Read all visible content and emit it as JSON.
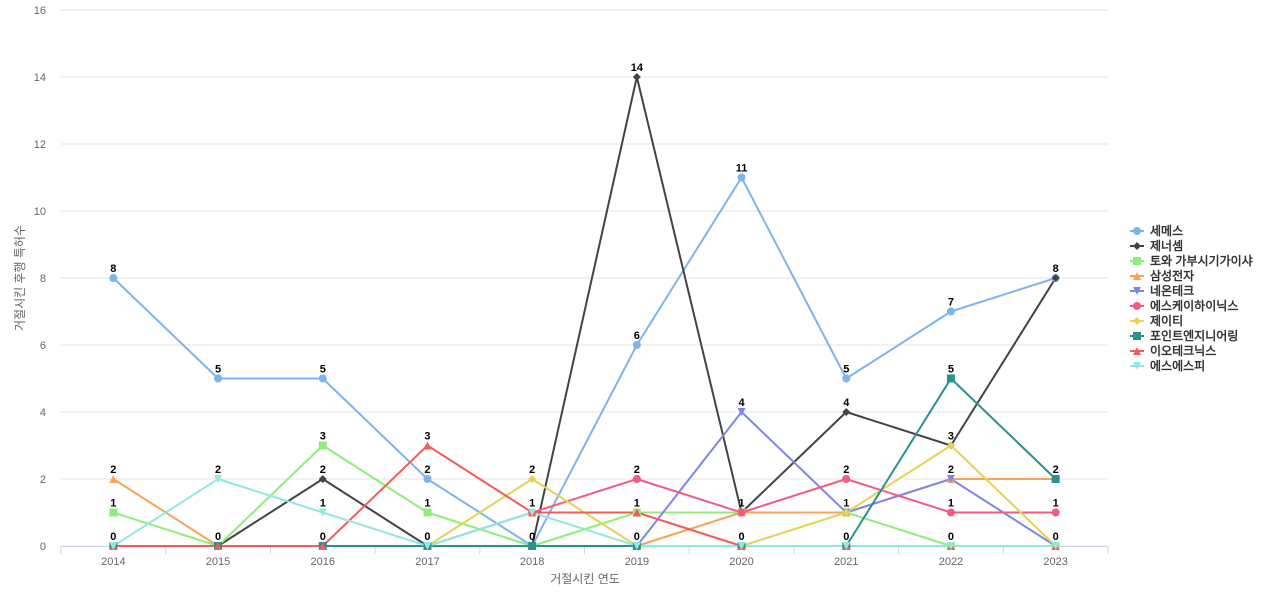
{
  "chart_data": {
    "type": "line",
    "title": "",
    "xlabel": "거절시킨 연도",
    "ylabel": "거절시킨 후행 특허수",
    "ylim": [
      0,
      16
    ],
    "yticks": [
      0,
      2,
      4,
      6,
      8,
      10,
      12,
      14,
      16
    ],
    "grid": true,
    "legend_position": "right",
    "x": [
      "2014",
      "2015",
      "2016",
      "2017",
      "2018",
      "2019",
      "2020",
      "2021",
      "2022",
      "2023"
    ],
    "series": [
      {
        "name": "세메스",
        "color": "#7cb5ec",
        "marker": "circle",
        "values": [
          8,
          5,
          5,
          2,
          0,
          6,
          11,
          5,
          7,
          8
        ]
      },
      {
        "name": "제너셈",
        "color": "#434348",
        "marker": "diamond",
        "values": [
          0,
          0,
          2,
          0,
          0,
          14,
          1,
          4,
          3,
          8
        ]
      },
      {
        "name": "토와 가부시기가이샤",
        "color": "#90ed7d",
        "marker": "square",
        "values": [
          1,
          0,
          3,
          1,
          0,
          1,
          1,
          1,
          0,
          0
        ]
      },
      {
        "name": "삼성전자",
        "color": "#f7a35c",
        "marker": "triangle",
        "values": [
          2,
          0,
          0,
          0,
          0,
          0,
          1,
          1,
          2,
          2
        ]
      },
      {
        "name": "네온테크",
        "color": "#8085e9",
        "marker": "triangle-down",
        "values": [
          0,
          0,
          0,
          0,
          0,
          0,
          4,
          1,
          2,
          0
        ]
      },
      {
        "name": "에스케이하이닉스",
        "color": "#f15c80",
        "marker": "circle",
        "values": [
          0,
          0,
          0,
          0,
          1,
          2,
          1,
          2,
          1,
          1
        ]
      },
      {
        "name": "제이티",
        "color": "#e4d354",
        "marker": "diamond",
        "values": [
          0,
          0,
          0,
          0,
          2,
          0,
          0,
          1,
          3,
          0
        ]
      },
      {
        "name": "포인트엔지니어링",
        "color": "#2b908f",
        "marker": "square",
        "values": [
          0,
          0,
          0,
          0,
          0,
          0,
          0,
          0,
          5,
          2
        ]
      },
      {
        "name": "이오테크닉스",
        "color": "#f45b5b",
        "marker": "triangle",
        "values": [
          0,
          0,
          0,
          3,
          1,
          1,
          0,
          0,
          0,
          0
        ]
      },
      {
        "name": "에스에스피",
        "color": "#91e8e1",
        "marker": "triangle-down",
        "values": [
          0,
          2,
          1,
          0,
          1,
          0,
          0,
          0,
          0,
          0
        ]
      }
    ],
    "data_labels": {
      "2014": [
        {
          "value": 8
        },
        {
          "value": 2
        },
        {
          "value": 1
        },
        {
          "value": 0
        }
      ],
      "2015": [
        {
          "value": 5
        },
        {
          "value": 2
        },
        {
          "value": 0
        }
      ],
      "2016": [
        {
          "value": 5
        },
        {
          "value": 3
        },
        {
          "value": 2
        },
        {
          "value": 1
        },
        {
          "value": 0
        }
      ],
      "2017": [
        {
          "value": 3
        },
        {
          "value": 2
        },
        {
          "value": 1
        },
        {
          "value": 0
        }
      ],
      "2018": [
        {
          "value": 2
        },
        {
          "value": 1
        },
        {
          "value": 0
        }
      ],
      "2019": [
        {
          "value": 14
        },
        {
          "value": 6
        },
        {
          "value": 2
        },
        {
          "value": 1
        },
        {
          "value": 0
        }
      ],
      "2020": [
        {
          "value": 11
        },
        {
          "value": 4
        },
        {
          "value": 1
        },
        {
          "value": 0
        }
      ],
      "2021": [
        {
          "value": 5
        },
        {
          "value": 4
        },
        {
          "value": 2
        },
        {
          "value": 1
        },
        {
          "value": 0
        }
      ],
      "2022": [
        {
          "value": 7
        },
        {
          "value": 5
        },
        {
          "value": 3
        },
        {
          "value": 2
        },
        {
          "value": 1
        },
        {
          "value": 0
        }
      ],
      "2023": [
        {
          "value": 8
        },
        {
          "value": 2
        },
        {
          "value": 1
        },
        {
          "value": 0
        }
      ]
    }
  }
}
